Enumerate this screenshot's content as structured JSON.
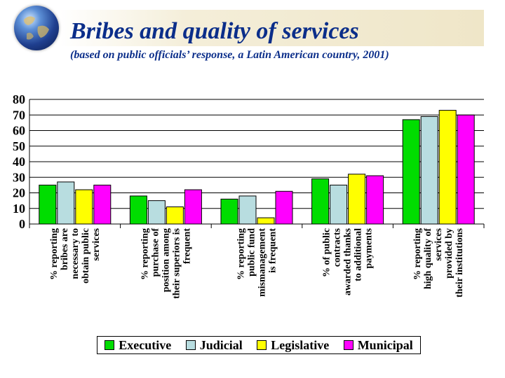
{
  "header": {
    "title": "Bribes and quality of services",
    "subtitle": "(based on public officials’ response, a Latin American country, 2001)"
  },
  "icons": {
    "logo": "globe-icon"
  },
  "colors": {
    "title": "#0b2e8a",
    "Executive": "#00dd00",
    "Judicial": "#b8dde0",
    "Legislative": "#ffff00",
    "Municipal": "#ff00ff"
  },
  "chart_data": {
    "type": "bar",
    "ylim": [
      0,
      80
    ],
    "yticks": [
      0,
      10,
      20,
      30,
      40,
      50,
      60,
      70,
      80
    ],
    "grid": true,
    "legend_position": "bottom",
    "categories": [
      [
        "% reporting",
        "bribes are",
        "necessary to",
        "obtain public",
        "services"
      ],
      [
        "% reporting",
        "purchase of",
        "position among",
        "their superiors is",
        "frequent"
      ],
      [
        "% reporting",
        "public fund",
        "mismanagement",
        "is frequent"
      ],
      [
        "% of public",
        "contracts",
        "awarded thanks",
        "to additional",
        "payments"
      ],
      [
        "% reporting",
        "high quality of",
        "services",
        "provided by",
        "their institutions"
      ]
    ],
    "series": [
      {
        "name": "Executive",
        "values": [
          25,
          18,
          16,
          29,
          67
        ]
      },
      {
        "name": "Judicial",
        "values": [
          27,
          15,
          18,
          25,
          69
        ]
      },
      {
        "name": "Legislative",
        "values": [
          22,
          11,
          4,
          32,
          73
        ]
      },
      {
        "name": "Municipal",
        "values": [
          25,
          22,
          21,
          31,
          70
        ]
      }
    ]
  }
}
